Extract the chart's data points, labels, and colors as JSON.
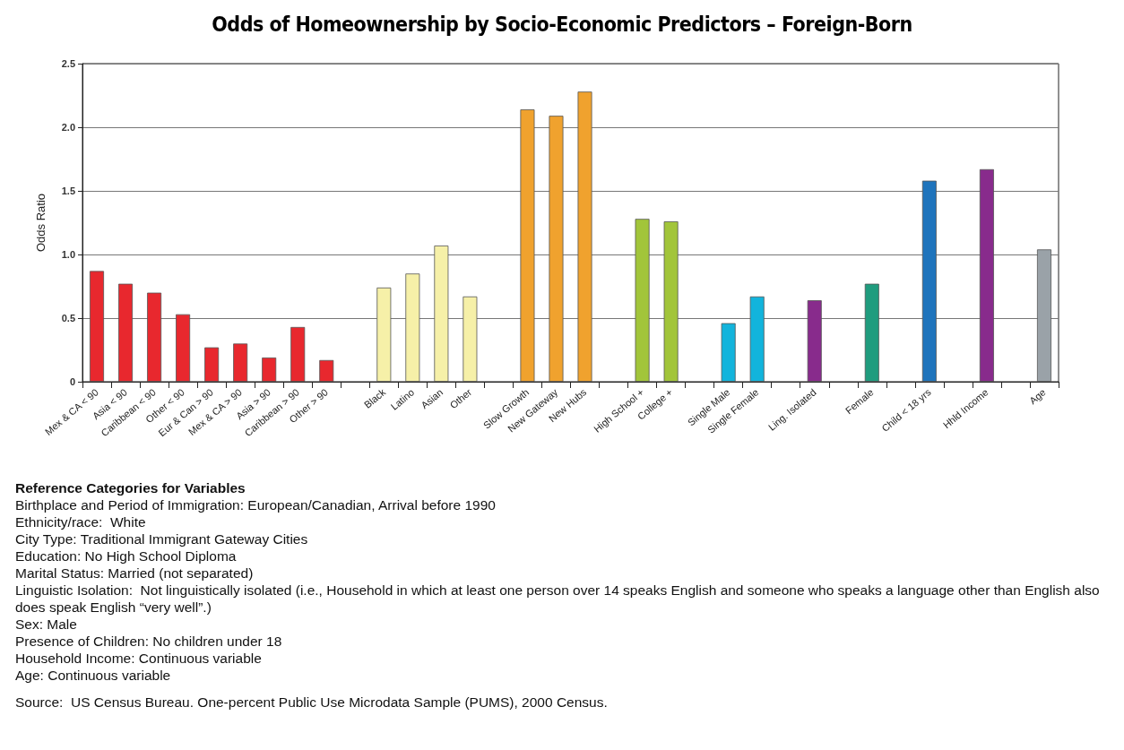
{
  "chart_data": {
    "type": "bar",
    "title": "Odds of Homeownership by Socio-Economic Predictors – Foreign-Born",
    "ylabel": "Odds Ratio",
    "categories": [
      "Mex & CA < 90",
      "Asia < 90",
      "Caribbean < 90",
      "Other < 90",
      "Eur & Can > 90",
      "Mex & CA > 90",
      "Asia > 90",
      "Caribbean > 90",
      "Other > 90",
      null,
      "Black",
      "Latino",
      "Asian",
      "Other",
      null,
      "Slow Growth",
      "New Gateway",
      "New Hubs",
      null,
      "High School +",
      "College +",
      null,
      "Single Male",
      "Single Female",
      null,
      "Ling. Isolated",
      null,
      "Female",
      null,
      "Child < 18 yrs",
      null,
      "Hhld Income",
      null,
      "Age"
    ],
    "values": [
      0.87,
      0.77,
      0.7,
      0.53,
      0.27,
      0.3,
      0.19,
      0.43,
      0.17,
      null,
      0.74,
      0.85,
      1.07,
      0.67,
      null,
      2.14,
      2.09,
      2.28,
      null,
      1.28,
      1.26,
      null,
      0.46,
      0.67,
      null,
      0.64,
      null,
      0.77,
      null,
      1.58,
      null,
      1.67,
      null,
      1.04
    ],
    "colors": [
      "#e8282e",
      "#e8282e",
      "#e8282e",
      "#e8282e",
      "#e8282e",
      "#e8282e",
      "#e8282e",
      "#e8282e",
      "#e8282e",
      null,
      "#f6f0a8",
      "#f6f0a8",
      "#f6f0a8",
      "#f6f0a8",
      null,
      "#f0a22e",
      "#f0a22e",
      "#f0a22e",
      null,
      "#a2c53a",
      "#a2c53a",
      null,
      "#12b4dc",
      "#12b4dc",
      null,
      "#882b8c",
      null,
      "#1f9c7e",
      null,
      "#1f74bc",
      null,
      "#882b8c",
      null,
      "#9aa2a8"
    ],
    "ylim": [
      0,
      2.5
    ],
    "yticks": [
      0,
      0.5,
      {
        "value": 1,
        "label": "1.0"
      },
      {
        "value": 1.5,
        "label": "1.5"
      },
      {
        "value": 2,
        "label": "2.0"
      },
      {
        "value": 2.5,
        "label": "2.5"
      }
    ],
    "grid": "y",
    "annotations": [
      "Reference Categories for Variables",
      "Birthplace and Period of Immigration: European/Canadian, Arrival before 1990",
      "Ethnicity/race:  White",
      "City Type: Traditional Immigrant Gateway Cities",
      "Education: No High School Diploma",
      "Marital Status: Married (not separated)",
      "Linguistic Isolation:  Not linguistically isolated (i.e., Household in which at least one person over 14 speaks English and someone who speaks a language other than English also does speak English “very well”.)",
      "Sex: Male",
      "Presence of Children: No children under 18",
      "Household Income: Continuous variable",
      "Age: Continuous variable",
      "Source:  US Census Bureau. One-percent Public Use Microdata Sample (PUMS), 2000 Census."
    ]
  }
}
